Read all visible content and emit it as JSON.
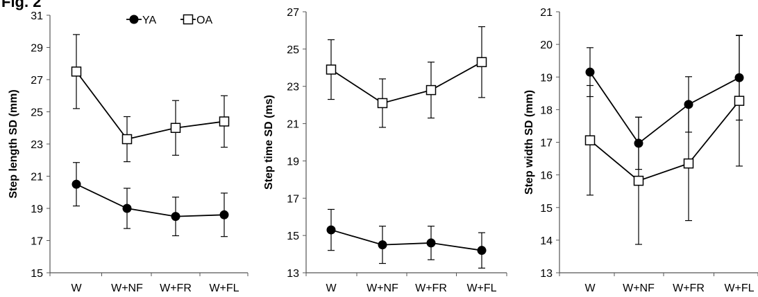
{
  "figure_label": "Fig. 2",
  "chart_data": [
    {
      "type": "line",
      "ylabel": "Step length SD (mm)",
      "ylim": [
        15,
        31
      ],
      "yticks": [
        15,
        17,
        19,
        21,
        23,
        25,
        27,
        29,
        31
      ],
      "categories": [
        "W",
        "W+NF",
        "W+FR",
        "W+FL"
      ],
      "legend": "top",
      "series": [
        {
          "name": "YA",
          "marker": "filled-circle",
          "values": [
            20.5,
            19.0,
            18.5,
            18.6
          ],
          "errors": [
            1.35,
            1.25,
            1.2,
            1.35
          ]
        },
        {
          "name": "OA",
          "marker": "open-square",
          "values": [
            27.5,
            23.3,
            24.0,
            24.4
          ],
          "errors": [
            2.3,
            1.4,
            1.7,
            1.6
          ]
        }
      ]
    },
    {
      "type": "line",
      "ylabel": "Step time SD (ms)",
      "ylim": [
        13,
        27
      ],
      "yticks": [
        13,
        15,
        17,
        19,
        21,
        23,
        25,
        27
      ],
      "categories": [
        "W",
        "W+NF",
        "W+FR",
        "W+FL"
      ],
      "series": [
        {
          "name": "YA",
          "marker": "filled-circle",
          "values": [
            15.3,
            14.5,
            14.6,
            14.2
          ],
          "errors": [
            1.1,
            1.0,
            0.9,
            0.95
          ]
        },
        {
          "name": "OA",
          "marker": "open-square",
          "values": [
            23.9,
            22.1,
            22.8,
            24.3
          ],
          "errors": [
            1.6,
            1.3,
            1.5,
            1.9
          ]
        }
      ]
    },
    {
      "type": "line",
      "ylabel": "Step width SD (mm)",
      "ylim": [
        13,
        21
      ],
      "yticks": [
        13,
        14,
        15,
        16,
        17,
        18,
        19,
        20,
        21
      ],
      "categories": [
        "W",
        "W+NF",
        "W+FR",
        "W+FL"
      ],
      "series": [
        {
          "name": "YA",
          "marker": "filled-circle",
          "values": [
            19.15,
            16.97,
            18.16,
            18.98
          ],
          "errors": [
            0.75,
            0.8,
            0.85,
            1.3
          ]
        },
        {
          "name": "OA",
          "marker": "open-square",
          "values": [
            17.06,
            15.82,
            16.35,
            18.27
          ],
          "errors": [
            1.68,
            1.95,
            1.75,
            2.0
          ]
        }
      ]
    }
  ]
}
